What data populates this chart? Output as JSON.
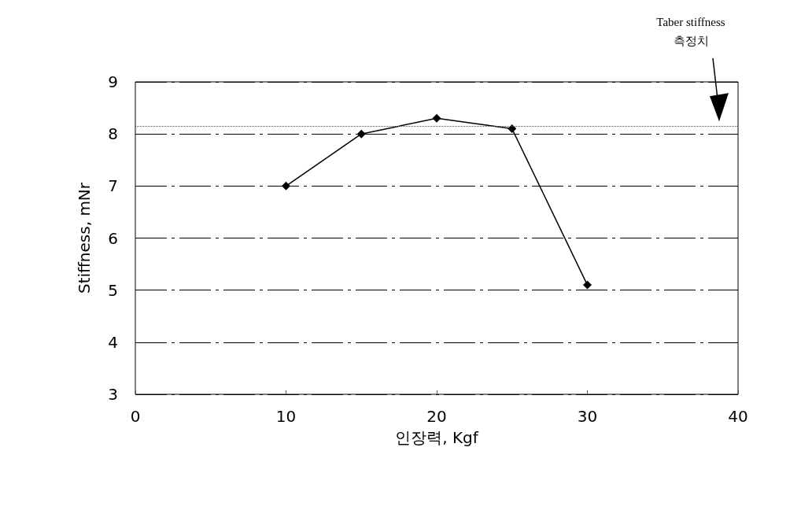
{
  "chart_data": {
    "type": "line",
    "xlabel": "인장력, Kgf",
    "ylabel": "Stiffness, mNr",
    "x": [
      10,
      15,
      20,
      25,
      30
    ],
    "series": [
      {
        "color": "#000000",
        "values": [
          7.0,
          8.0,
          8.3,
          8.1,
          5.1
        ]
      }
    ],
    "xlim": [
      0,
      40
    ],
    "xticks": [
      0,
      10,
      20,
      30,
      40
    ],
    "ylim": [
      3,
      9
    ],
    "yticks": [
      3,
      4,
      5,
      6,
      7,
      8,
      9
    ],
    "grid": "y",
    "marker": "diamond",
    "line_style": "solid",
    "annotations": [
      "Taber stiffness\n측정치"
    ],
    "ref_lines": [
      {
        "axis": "y",
        "value": 8.15,
        "color": "#555555",
        "line_style": "dotted"
      }
    ]
  }
}
